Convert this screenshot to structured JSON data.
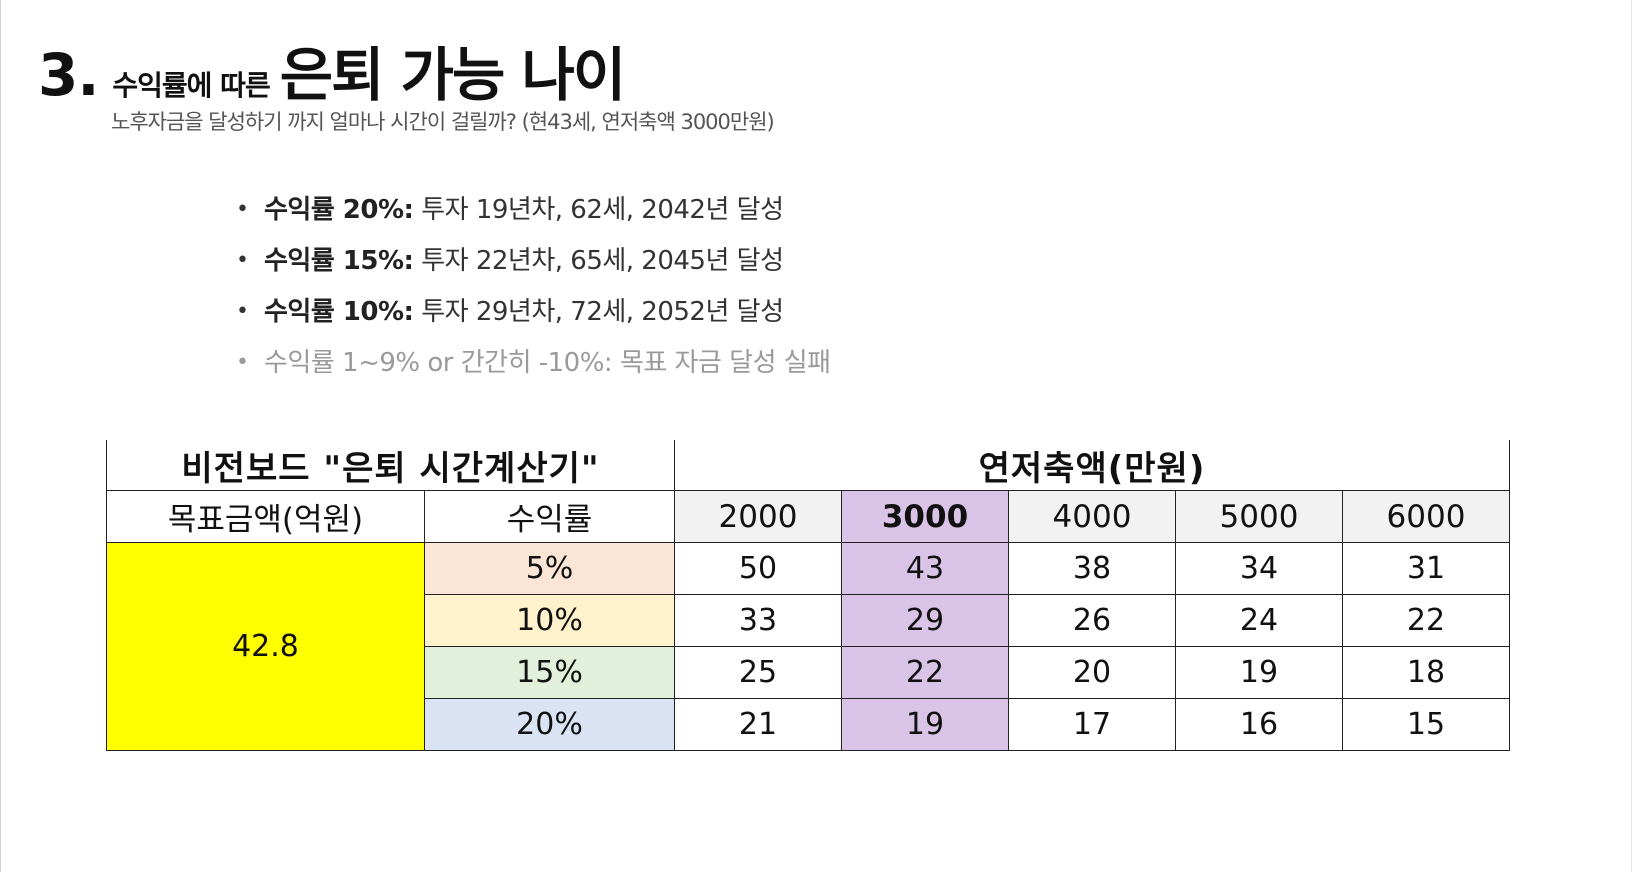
{
  "title": {
    "number": "3.",
    "prefix": "수익률에 따른",
    "main": "은퇴 가능 나이",
    "subtitle": "노후자금을 달성하기 까지 얼마나 시간이 걸릴까?  (현43세, 연저축액 3000만원)"
  },
  "bullets": [
    {
      "lead": "수익률 20%:",
      "text": " 투자 19년차, 62세, 2042년 달성"
    },
    {
      "lead": "수익률 15%:",
      "text": " 투자 22년차, 65세, 2045년 달성"
    },
    {
      "lead": "수익률 10%:",
      "text": " 투자 29년차, 72세, 2052년 달성"
    },
    {
      "lead": "수익률 1~9% or 간간히 -10%:",
      "text": " 목표 자금 달성 실패"
    }
  ],
  "table": {
    "calculator_title": "비전보드 \"은퇴 시간계산기\"",
    "savings_title": "연저축액(만원)",
    "target_header": "목표금액(억원)",
    "rate_header": "수익률",
    "target_value": "42.8",
    "savings_amounts": [
      "2000",
      "3000",
      "4000",
      "5000",
      "6000"
    ],
    "highlight_column": "3000",
    "rows": [
      {
        "rate": "5%",
        "values": [
          "50",
          "43",
          "38",
          "34",
          "31"
        ]
      },
      {
        "rate": "10%",
        "values": [
          "33",
          "29",
          "26",
          "24",
          "22"
        ]
      },
      {
        "rate": "15%",
        "values": [
          "25",
          "22",
          "20",
          "19",
          "18"
        ]
      },
      {
        "rate": "20%",
        "values": [
          "21",
          "19",
          "17",
          "16",
          "15"
        ]
      }
    ]
  },
  "colors": {
    "target_fill": "#ffff00",
    "highlight_fill": "#d9c3e6",
    "rate_5": "#fbe5d6",
    "rate_10": "#fff2cc",
    "rate_15": "#e2efda",
    "rate_20": "#dae3f3"
  }
}
